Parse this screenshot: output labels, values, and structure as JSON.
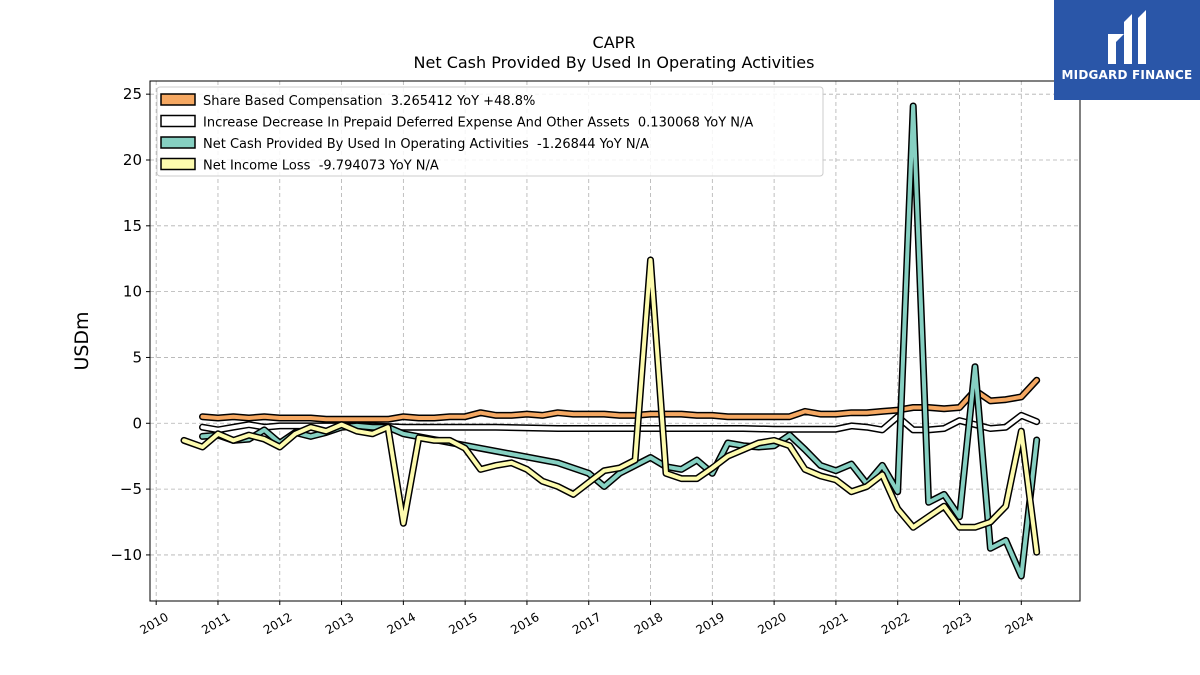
{
  "logo": {
    "text": "MIDGARD FINANCE",
    "icon": "midgard-m-logo-icon",
    "color": "#2a56a8"
  },
  "chart_data": {
    "type": "line",
    "title": "CAPR",
    "subtitle": "Net Cash Provided By Used In Operating Activities",
    "ylabel": "USDm",
    "xlabel": "",
    "x_ticks": [
      "2010",
      "2011",
      "2012",
      "2013",
      "2014",
      "2015",
      "2016",
      "2017",
      "2018",
      "2019",
      "2020",
      "2021",
      "2022",
      "2023",
      "2024"
    ],
    "y_ticks": [
      -10,
      -5,
      0,
      5,
      10,
      15,
      20,
      25
    ],
    "xlim": [
      2009.9,
      2024.95
    ],
    "ylim": [
      -13.5,
      26
    ],
    "grid": true,
    "legend_position": "top-left",
    "series": [
      {
        "name": "Share Based Compensation  3.265412 YoY +48.8%",
        "color": "#f5a862",
        "x": [
          2010.75,
          2011.0,
          2011.25,
          2011.5,
          2011.75,
          2012.0,
          2012.25,
          2012.5,
          2012.75,
          2013.0,
          2013.25,
          2013.5,
          2013.75,
          2014.0,
          2014.25,
          2014.5,
          2014.75,
          2015.0,
          2015.25,
          2015.5,
          2015.75,
          2016.0,
          2016.25,
          2016.5,
          2016.75,
          2017.0,
          2017.25,
          2017.5,
          2017.75,
          2018.0,
          2018.25,
          2018.5,
          2018.75,
          2019.0,
          2019.25,
          2019.5,
          2019.75,
          2020.0,
          2020.25,
          2020.5,
          2020.75,
          2021.0,
          2021.25,
          2021.5,
          2021.75,
          2022.0,
          2022.25,
          2022.5,
          2022.75,
          2023.0,
          2023.25,
          2023.5,
          2023.75,
          2024.0,
          2024.25
        ],
        "y": [
          0.5,
          0.4,
          0.5,
          0.4,
          0.5,
          0.4,
          0.4,
          0.4,
          0.3,
          0.3,
          0.3,
          0.3,
          0.3,
          0.5,
          0.4,
          0.4,
          0.5,
          0.5,
          0.8,
          0.6,
          0.6,
          0.7,
          0.6,
          0.8,
          0.7,
          0.7,
          0.7,
          0.6,
          0.6,
          0.7,
          0.7,
          0.7,
          0.6,
          0.6,
          0.5,
          0.5,
          0.5,
          0.5,
          0.5,
          0.9,
          0.7,
          0.7,
          0.8,
          0.8,
          0.9,
          1.0,
          1.2,
          1.2,
          1.1,
          1.2,
          2.5,
          1.7,
          1.8,
          2.0,
          3.27
        ]
      },
      {
        "name": "Increase Decrease In Prepaid Deferred Expense And Other Assets  0.130068 YoY N/A",
        "color": "#ffffff",
        "x": [
          2010.75,
          2011.0,
          2011.25,
          2011.5,
          2011.75,
          2012.0,
          2012.5,
          2013.0,
          2013.5,
          2014.0,
          2014.5,
          2015.0,
          2015.5,
          2016.0,
          2016.5,
          2017.0,
          2017.5,
          2018.0,
          2018.5,
          2019.0,
          2019.5,
          2020.0,
          2020.25,
          2020.5,
          2020.75,
          2021.0,
          2021.25,
          2021.5,
          2021.75,
          2022.0,
          2022.25,
          2022.5,
          2022.75,
          2023.0,
          2023.25,
          2023.5,
          2023.75,
          2024.0,
          2024.25
        ],
        "y": [
          -0.3,
          -0.5,
          -0.3,
          -0.1,
          -0.3,
          -0.2,
          -0.2,
          -0.2,
          -0.2,
          -0.3,
          -0.3,
          -0.3,
          -0.3,
          -0.35,
          -0.4,
          -0.4,
          -0.4,
          -0.4,
          -0.4,
          -0.4,
          -0.4,
          -0.45,
          -0.45,
          -0.45,
          -0.45,
          -0.45,
          -0.2,
          -0.3,
          -0.5,
          0.5,
          -0.5,
          -0.5,
          -0.4,
          0.2,
          -0.1,
          -0.4,
          -0.3,
          0.6,
          0.13
        ]
      },
      {
        "name": "Net Cash Provided By Used In Operating Activities  -1.26844 YoY N/A",
        "color": "#86d0c2",
        "x": [
          2010.75,
          2011.0,
          2011.25,
          2011.5,
          2011.75,
          2012.0,
          2012.25,
          2012.5,
          2012.75,
          2013.0,
          2013.25,
          2013.5,
          2013.75,
          2014.0,
          2016.5,
          2017.0,
          2017.25,
          2017.5,
          2017.75,
          2018.0,
          2018.25,
          2018.5,
          2018.75,
          2019.0,
          2019.25,
          2019.5,
          2019.75,
          2020.0,
          2020.25,
          2020.5,
          2020.75,
          2021.0,
          2021.25,
          2021.5,
          2021.75,
          2022.0,
          2022.25,
          2022.5,
          2022.75,
          2023.0,
          2023.25,
          2023.5,
          2023.75,
          2024.0,
          2024.25
        ],
        "y": [
          -1.0,
          -0.9,
          -1.3,
          -1.2,
          -0.5,
          -1.5,
          -0.7,
          -1.0,
          -0.7,
          -0.3,
          -0.2,
          -0.3,
          -0.3,
          -0.8,
          -3.0,
          -3.8,
          -4.8,
          -3.8,
          -3.2,
          -2.6,
          -3.3,
          -3.5,
          -2.8,
          -3.8,
          -1.5,
          -1.7,
          -1.8,
          -1.7,
          -0.9,
          -2.0,
          -3.2,
          -3.6,
          -3.1,
          -4.6,
          -3.2,
          -5.2,
          24.1,
          -6.0,
          -5.4,
          -7.1,
          4.3,
          -9.5,
          -8.9,
          -11.6,
          -1.27
        ]
      },
      {
        "name": "Net Income Loss  -9.794073 YoY N/A",
        "color": "#fdfbae",
        "x": [
          2010.45,
          2010.75,
          2011.0,
          2011.25,
          2011.5,
          2011.75,
          2012.0,
          2012.25,
          2012.5,
          2012.75,
          2013.0,
          2013.25,
          2013.5,
          2013.75,
          2014.0,
          2014.25,
          2014.5,
          2014.75,
          2015.0,
          2015.25,
          2015.5,
          2015.75,
          2016.0,
          2016.25,
          2016.5,
          2016.75,
          2017.0,
          2017.25,
          2017.5,
          2017.75,
          2018.0,
          2018.25,
          2018.5,
          2018.75,
          2019.0,
          2019.25,
          2019.5,
          2019.75,
          2020.0,
          2020.25,
          2020.5,
          2020.75,
          2021.0,
          2021.25,
          2021.5,
          2021.75,
          2022.0,
          2022.25,
          2022.5,
          2022.75,
          2023.0,
          2023.25,
          2023.5,
          2023.75,
          2024.0,
          2024.25
        ],
        "y": [
          -1.3,
          -1.8,
          -0.8,
          -1.3,
          -0.9,
          -1.2,
          -1.8,
          -0.8,
          -0.3,
          -0.6,
          -0.1,
          -0.6,
          -0.8,
          -0.3,
          -7.6,
          -1.1,
          -1.3,
          -1.3,
          -1.9,
          -3.5,
          -3.2,
          -3.0,
          -3.5,
          -4.4,
          -4.8,
          -5.4,
          -4.5,
          -3.6,
          -3.4,
          -2.8,
          12.4,
          -3.8,
          -4.2,
          -4.2,
          -3.4,
          -2.5,
          -2.0,
          -1.5,
          -1.3,
          -1.7,
          -3.5,
          -4.0,
          -4.3,
          -5.2,
          -4.8,
          -3.9,
          -6.5,
          -7.9,
          -7.1,
          -6.3,
          -7.9,
          -7.9,
          -7.5,
          -6.3,
          -0.6,
          -9.79
        ]
      }
    ]
  }
}
